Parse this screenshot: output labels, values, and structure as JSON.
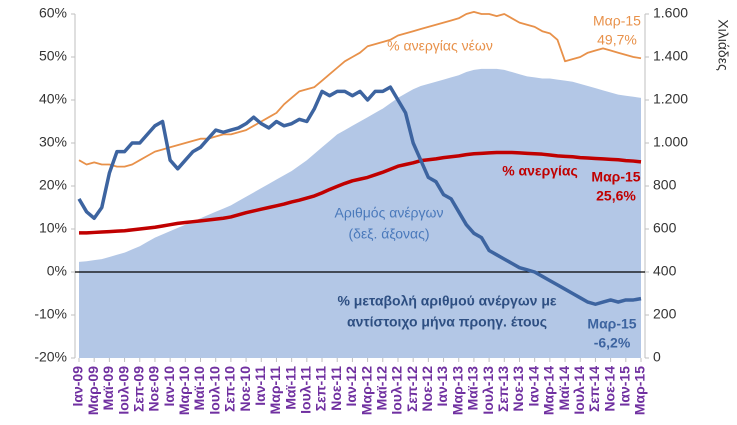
{
  "chart_data": {
    "type": "line",
    "categories": [
      "Ιαν-09",
      null,
      "Μαρ-09",
      null,
      "Μαϊ-09",
      null,
      "Ιουλ-09",
      null,
      "Σεπ-09",
      null,
      "Νοε-09",
      null,
      "Ιαν-10",
      null,
      "Μαρ-10",
      null,
      "Μαϊ-10",
      null,
      "Ιουλ-10",
      null,
      "Σεπ-10",
      null,
      "Νοε-10",
      null,
      "Ιαν-11",
      null,
      "Μαρ-11",
      null,
      "Μαϊ-11",
      null,
      "Ιουλ-11",
      null,
      "Σεπ-11",
      null,
      "Νοε-11",
      null,
      "Ιαν-12",
      null,
      "Μαρ-12",
      null,
      "Μαϊ-12",
      null,
      "Ιουλ-12",
      null,
      "Σεπ-12",
      null,
      "Νοε-12",
      null,
      "Ιαν-13",
      null,
      "Μαρ-13",
      null,
      "Μαϊ-13",
      null,
      "Ιουλ-13",
      null,
      "Σεπ-13",
      null,
      "Νοε-13",
      null,
      "Ιαν-14",
      null,
      "Μαρ-14",
      null,
      "Μαϊ-14",
      null,
      "Ιουλ-14",
      null,
      "Σεπ-14",
      null,
      "Νοε-14",
      null,
      "Ιαν-15",
      null,
      "Μαρ-15"
    ],
    "series": [
      {
        "name": [
          "Αριθμός ανέργων",
          "(δεξ. άξονας)"
        ],
        "type": "area",
        "axis": "y2",
        "color": "#b3c7e6",
        "values": [
          447,
          450,
          455,
          460,
          470,
          480,
          490,
          505,
          520,
          540,
          560,
          575,
          590,
          605,
          620,
          635,
          650,
          665,
          680,
          695,
          710,
          730,
          750,
          770,
          790,
          810,
          830,
          850,
          870,
          895,
          920,
          950,
          980,
          1010,
          1040,
          1060,
          1080,
          1100,
          1120,
          1140,
          1160,
          1185,
          1210,
          1230,
          1250,
          1265,
          1275,
          1285,
          1295,
          1305,
          1315,
          1330,
          1340,
          1345,
          1345,
          1345,
          1340,
          1330,
          1320,
          1310,
          1305,
          1300,
          1300,
          1295,
          1290,
          1285,
          1275,
          1265,
          1255,
          1245,
          1235,
          1225,
          1220,
          1215,
          1210
        ]
      },
      {
        "name": [
          "% ανεργίας νέων"
        ],
        "color": "#e8914a",
        "values": [
          26,
          25,
          25.5,
          25,
          25,
          24.5,
          24.5,
          25,
          26,
          27,
          28,
          28.5,
          29,
          29.5,
          30,
          30.5,
          31,
          31,
          31.5,
          32,
          32,
          32.5,
          33,
          34,
          35,
          36,
          37,
          39,
          40.5,
          42,
          42.5,
          43,
          44.5,
          46,
          47.5,
          49,
          50,
          51,
          52.5,
          53,
          53.5,
          54,
          55,
          55.5,
          56,
          56.5,
          57,
          57.5,
          58,
          58.5,
          59,
          60,
          60.5,
          60,
          60,
          59.5,
          60,
          59,
          58,
          57.5,
          57,
          56,
          55.5,
          54,
          49,
          49.5,
          50,
          51,
          51.5,
          52,
          51.5,
          51,
          50.5,
          50,
          49.7
        ]
      },
      {
        "name": [
          "% ανεργίας"
        ],
        "color": "#c00000",
        "values": [
          9.1,
          9.1,
          9.2,
          9.3,
          9.4,
          9.5,
          9.6,
          9.8,
          10.0,
          10.2,
          10.4,
          10.7,
          11.0,
          11.3,
          11.5,
          11.7,
          11.9,
          12.1,
          12.3,
          12.5,
          12.8,
          13.3,
          13.8,
          14.2,
          14.6,
          15.0,
          15.4,
          15.8,
          16.3,
          16.7,
          17.2,
          17.7,
          18.4,
          19.2,
          19.9,
          20.6,
          21.2,
          21.6,
          22.0,
          22.6,
          23.2,
          23.9,
          24.6,
          25.0,
          25.4,
          25.9,
          26.1,
          26.3,
          26.6,
          26.8,
          27.0,
          27.3,
          27.5,
          27.6,
          27.7,
          27.8,
          27.8,
          27.8,
          27.7,
          27.6,
          27.5,
          27.4,
          27.2,
          27.0,
          26.9,
          26.8,
          26.6,
          26.5,
          26.4,
          26.3,
          26.2,
          26.1,
          25.9,
          25.8,
          25.6
        ]
      },
      {
        "name": [
          "% μεταβολή αριθμού ανέργων με",
          "αντίστοιχο μήνα προηγ. έτους"
        ],
        "color": "#3d64a0",
        "values": [
          17,
          14,
          12.5,
          15,
          23,
          28,
          28,
          30,
          30,
          32,
          34,
          35,
          26,
          24,
          26,
          28,
          29,
          31,
          33,
          32.5,
          33,
          33.5,
          34.5,
          36,
          34.5,
          33.5,
          35,
          34,
          34.5,
          35.5,
          35,
          38,
          42,
          41,
          42,
          42,
          41,
          42,
          40,
          42,
          42,
          43,
          40,
          37,
          30,
          26,
          22,
          21,
          18,
          17,
          14,
          11,
          9,
          8,
          5,
          4,
          3,
          2,
          1,
          0.5,
          0,
          -1,
          -2,
          -3,
          -4,
          -5,
          -6,
          -7,
          -7.5,
          -7,
          -6.5,
          -7,
          -6.5,
          -6.5,
          -6.2
        ]
      }
    ],
    "annotations": [
      {
        "text": [
          "Μαρ-15",
          "49,7%"
        ],
        "color": "#e8914a"
      },
      {
        "text": [
          "Μαρ-15",
          "25,6%"
        ],
        "color": "#c00000"
      },
      {
        "text": [
          "Μαρ-15",
          "-6,2%"
        ],
        "color": "#3d64a0"
      }
    ],
    "ylim": [
      -20,
      60
    ],
    "yticks": [
      {
        "value": -20,
        "label": "-20%"
      },
      {
        "value": -10,
        "label": "-10%"
      },
      {
        "value": 0,
        "label": "0%"
      },
      {
        "value": 10,
        "label": "10%"
      },
      {
        "value": 20,
        "label": "20%"
      },
      {
        "value": 30,
        "label": "30%"
      },
      {
        "value": 40,
        "label": "40%"
      },
      {
        "value": 50,
        "label": "50%"
      },
      {
        "value": 60,
        "label": "60%"
      }
    ],
    "y2lim": [
      0,
      1600
    ],
    "y2ticks": [
      0,
      200,
      400,
      600,
      800,
      {
        "value": 1000,
        "label": "1.000"
      },
      {
        "value": 1200,
        "label": "1.200"
      },
      {
        "value": 1400,
        "label": "1.400"
      },
      {
        "value": 1600,
        "label": "1.600"
      }
    ],
    "y2label": "Χιλιάδες",
    "category_color": "#7030a0"
  }
}
